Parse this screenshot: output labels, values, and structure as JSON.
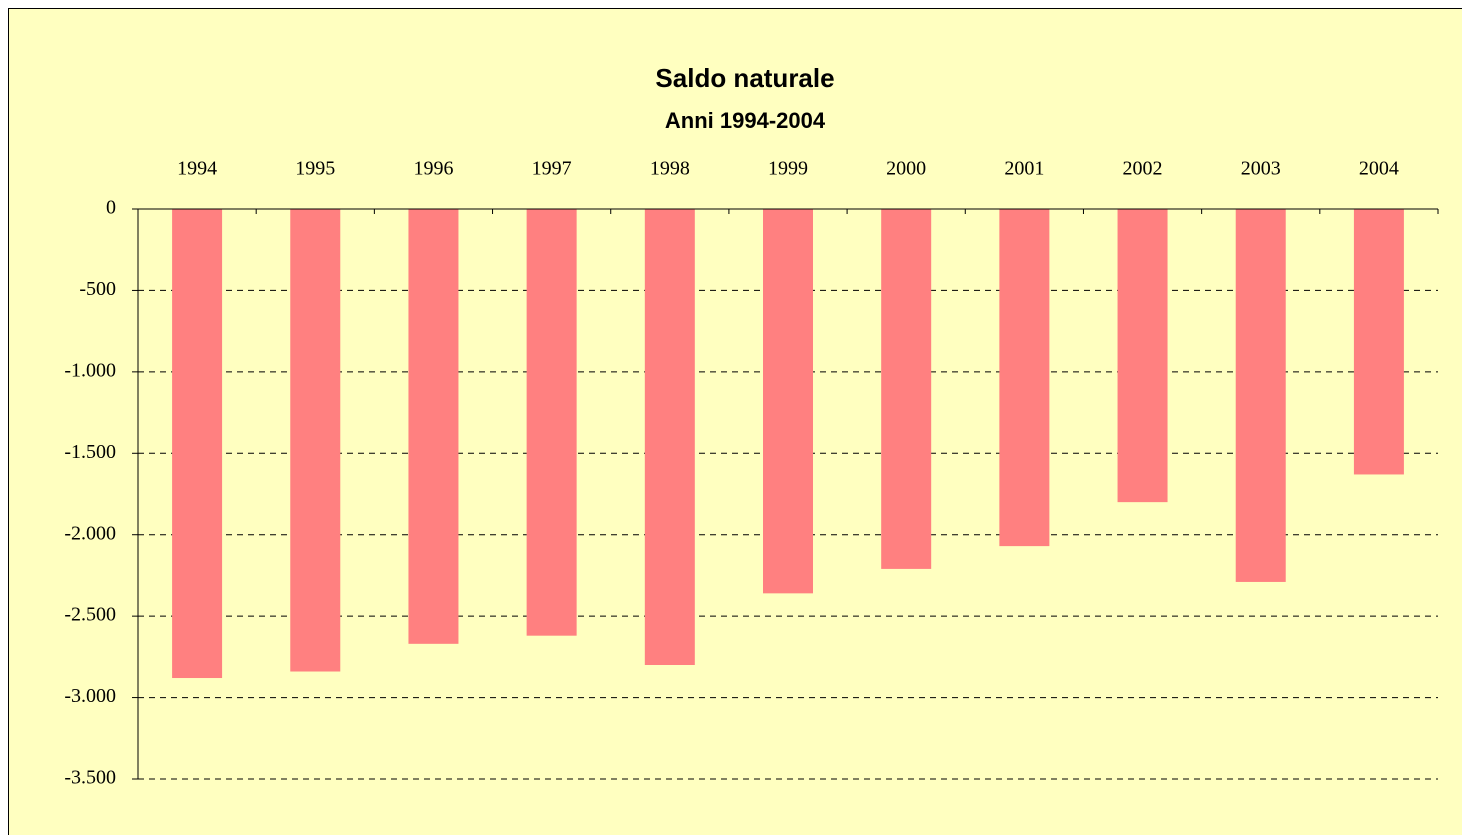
{
  "chart_data": {
    "type": "bar",
    "title": "Saldo naturale",
    "subtitle": "Anni 1994-2004",
    "categories": [
      "1994",
      "1995",
      "1996",
      "1997",
      "1998",
      "1999",
      "2000",
      "2001",
      "2002",
      "2003",
      "2004"
    ],
    "values": [
      -2880,
      -2840,
      -2670,
      -2620,
      -2800,
      -2360,
      -2210,
      -2070,
      -1800,
      -2290,
      -1630
    ],
    "color": "#ff8080",
    "ylim": [
      -3500,
      0
    ],
    "yticks": [
      0,
      -500,
      {
        "value": -1000,
        "label": "-1.000"
      },
      {
        "value": -1500,
        "label": "-1.500"
      },
      {
        "value": -2000,
        "label": "-2.000"
      },
      {
        "value": -2500,
        "label": "-2.500"
      },
      {
        "value": -3000,
        "label": "-3.000"
      },
      {
        "value": -3500,
        "label": "-3.500"
      }
    ],
    "grid": true
  }
}
